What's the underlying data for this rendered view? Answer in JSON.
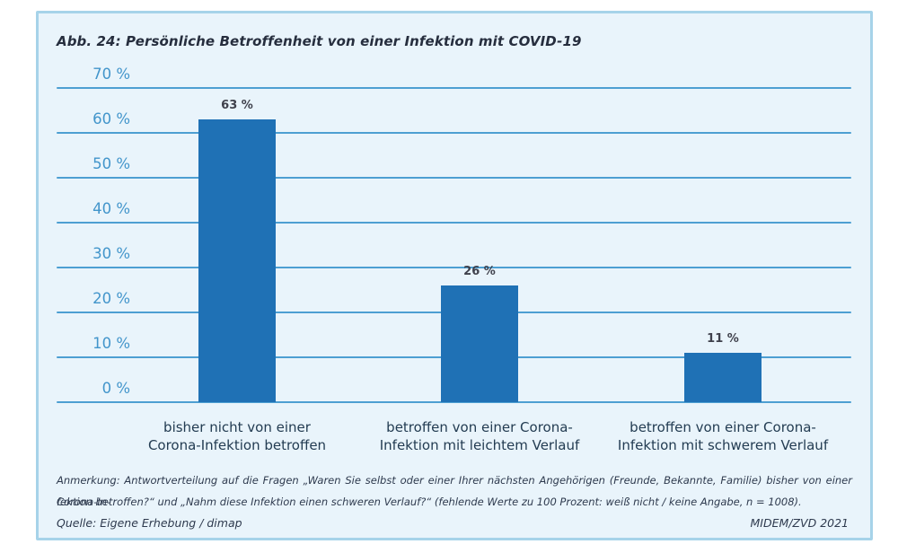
{
  "figure": {
    "title": "Abb. 24: Persönliche Betroffenheit von einer Infektion mit COVID-19",
    "footnote_line1": "Anmerkung: Antwortverteilung auf die Fragen „Waren Sie selbst oder einer Ihrer nächsten Angehörigen (Freunde, Bekannte, Familie) bisher von einer Corona-In-",
    "footnote_line2": "fektion betroffen?“ und „Nahm diese Infektion einen schweren Verlauf?“ (fehlende Werte zu 100 Prozent: weiß nicht / keine Angabe, n = 1008).",
    "source": "Quelle: Eigene Erhebung / dimap",
    "attribution": "MIDEM/ZVD 2021"
  },
  "chart_data": {
    "type": "bar",
    "title": "Abb. 24: Persönliche Betroffenheit von einer Infektion mit COVID-19",
    "categories": [
      "bisher nicht von einer\nCorona-Infektion betroffen",
      "betroffen von einer Corona-\nInfektion mit leichtem Verlauf",
      "betroffen von einer Corona-\nInfektion mit schwerem Verlauf"
    ],
    "values": [
      63,
      26,
      11
    ],
    "value_labels": [
      "63 %",
      "26 %",
      "11 %"
    ],
    "xlabel": "",
    "ylabel": "",
    "ylim": [
      0,
      70
    ],
    "y_tick_step": 10,
    "y_tick_labels": [
      "0 %",
      "10 %",
      "20 %",
      "30 %",
      "40 %",
      "50 %",
      "60 %",
      "70 %"
    ],
    "grid": true,
    "legend": false,
    "bar_color": "#1f71b5"
  },
  "colors": {
    "panel_background": "#e9f4fb",
    "panel_border": "#a6d3e9",
    "gridline": "#4d9fd2",
    "tick_label": "#4295cb",
    "bar": "#1f71b5",
    "value_label": "#3f414c",
    "category_label": "#233c52",
    "title_text": "#262e3e",
    "footnote_text": "#2e3a4e"
  }
}
